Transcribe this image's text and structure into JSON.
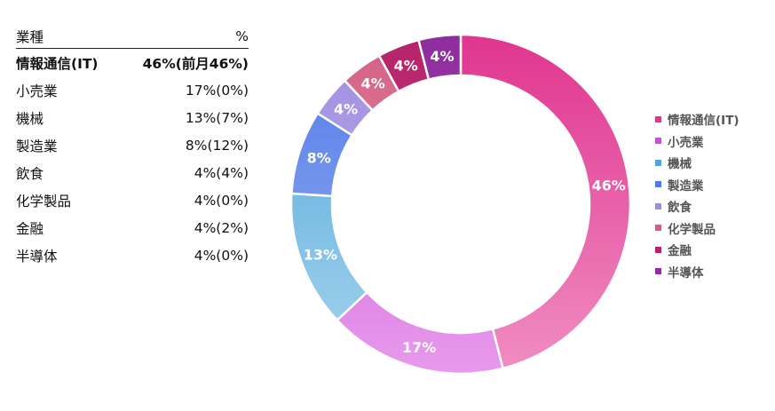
{
  "table": {
    "header": {
      "category": "業種",
      "percent": "%"
    },
    "rows": [
      {
        "name": "情報通信(IT)",
        "value": "46%(前月46%)",
        "bold": true
      },
      {
        "name": "小売業",
        "value": "17%(0%)"
      },
      {
        "name": "機械",
        "value": "13%(7%)"
      },
      {
        "name": "製造業",
        "value": "8%(12%)"
      },
      {
        "name": "飲食",
        "value": "4%(4%)"
      },
      {
        "name": "化学製品",
        "value": "4%(0%)"
      },
      {
        "name": "金融",
        "value": "4%(2%)"
      },
      {
        "name": "半導体",
        "value": "4%(0%)"
      }
    ]
  },
  "chart_data": {
    "type": "pie",
    "donut": true,
    "categories": [
      "情報通信(IT)",
      "小売業",
      "機械",
      "製造業",
      "飲食",
      "化学製品",
      "金融",
      "半導体"
    ],
    "values": [
      46,
      17,
      13,
      8,
      4,
      4,
      4,
      4
    ],
    "labels": [
      "46%",
      "17%",
      "13%",
      "8%",
      "4%",
      "4%",
      "4%",
      "4%"
    ],
    "colors": [
      [
        "#E0358F",
        "#F08DC2"
      ],
      [
        "#C94FD8",
        "#E79AEC"
      ],
      [
        "#4FA5D8",
        "#A6D4EE"
      ],
      [
        "#4F78E8",
        "#9CB6F3"
      ],
      [
        "#9F8DE0",
        "#C3B6EF"
      ],
      [
        "#D45F84",
        "#ECA3B8"
      ],
      [
        "#B5246A",
        "#D6468A"
      ],
      [
        "#8E2D9E",
        "#B249C2"
      ]
    ],
    "legend_position": "right"
  }
}
